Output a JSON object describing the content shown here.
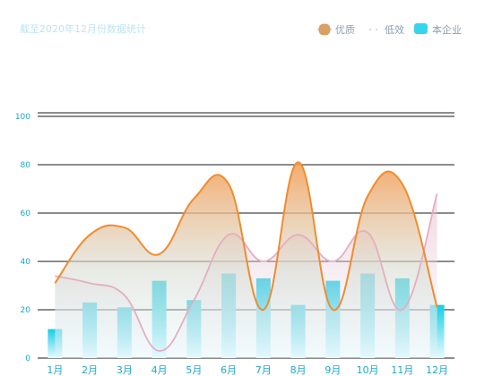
{
  "chart_data": {
    "type": "line",
    "title": "截至2020年12月份数据统计",
    "categories": [
      "1月",
      "2月",
      "3月",
      "4月",
      "5月",
      "6月",
      "7月",
      "8月",
      "9月",
      "10月",
      "11月",
      "12月"
    ],
    "ylim": [
      0,
      100
    ],
    "yticks": [
      0,
      20,
      40,
      60,
      80,
      100
    ],
    "grid": true,
    "legend_position": "top-right",
    "series": [
      {
        "name": "优质",
        "type": "area-line",
        "color": "#f08c2e",
        "values": [
          31,
          51,
          54,
          43,
          66,
          72,
          20,
          81,
          20,
          67,
          72,
          21
        ]
      },
      {
        "name": "低效",
        "type": "area-line",
        "color": "#e3afc0",
        "values": [
          34,
          31,
          26,
          3,
          24,
          51,
          40,
          51,
          40,
          52,
          20,
          68
        ]
      },
      {
        "name": "本企业",
        "type": "bar",
        "color": "#1fcde8",
        "values": [
          12,
          23,
          21,
          32,
          24,
          35,
          33,
          22,
          32,
          35,
          33,
          22
        ]
      }
    ]
  }
}
